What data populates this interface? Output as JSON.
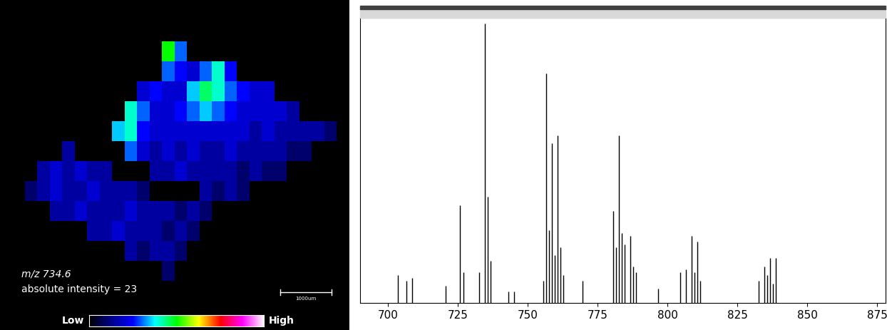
{
  "chart_data": [
    {
      "type": "heatmap",
      "annotations": [
        "m/z 734.6",
        "absolute intensity = 23"
      ],
      "scale_bar": "1000um",
      "colorbar_labels": [
        "Low",
        "High"
      ],
      "color_range": [
        0,
        1
      ],
      "colors": [
        "#000000",
        "#00008b",
        "#0000ff",
        "#00ffff",
        "#00ff00",
        "#ffff00",
        "#ff0000",
        "#ff00ff",
        "#ffffff"
      ],
      "tick_labels": false,
      "cells": [
        [
          0,
          0,
          0,
          0,
          0,
          0,
          0,
          0,
          0,
          0,
          0,
          0,
          0,
          0,
          0,
          0,
          0,
          0,
          0,
          0,
          0,
          0,
          0,
          0,
          0,
          0,
          0,
          0
        ],
        [
          0,
          0,
          0,
          0,
          0,
          0,
          0,
          0,
          0,
          0,
          0,
          0,
          0,
          0.5,
          0.3,
          0,
          0,
          0,
          0,
          0,
          0,
          0,
          0,
          0,
          0,
          0,
          0,
          0
        ],
        [
          0,
          0,
          0,
          0,
          0,
          0,
          0,
          0,
          0,
          0,
          0,
          0,
          0,
          0.3,
          0.25,
          0.2,
          0.3,
          0.4,
          0.25,
          0,
          0,
          0,
          0,
          0,
          0,
          0,
          0,
          0
        ],
        [
          0,
          0,
          0,
          0,
          0,
          0,
          0,
          0,
          0,
          0,
          0,
          0.2,
          0.25,
          0.2,
          0.2,
          0.35,
          0.45,
          0.4,
          0.3,
          0.25,
          0.2,
          0.2,
          0,
          0,
          0,
          0,
          0,
          0
        ],
        [
          0,
          0,
          0,
          0,
          0,
          0,
          0,
          0,
          0,
          0,
          0.4,
          0.3,
          0.2,
          0.2,
          0.25,
          0.3,
          0.35,
          0.3,
          0.25,
          0.2,
          0.2,
          0.2,
          0.2,
          0.15,
          0,
          0,
          0,
          0
        ],
        [
          0,
          0,
          0,
          0,
          0,
          0,
          0,
          0,
          0,
          0.35,
          0.4,
          0.25,
          0.2,
          0.2,
          0.2,
          0.2,
          0.2,
          0.2,
          0.2,
          0.2,
          0.15,
          0.2,
          0.15,
          0.15,
          0.15,
          0.15,
          0.1,
          0
        ],
        [
          0,
          0,
          0,
          0,
          0,
          0.15,
          0,
          0,
          0,
          0,
          0.3,
          0.2,
          0.15,
          0.2,
          0.15,
          0.2,
          0.15,
          0.15,
          0.2,
          0.15,
          0.15,
          0.15,
          0.15,
          0.1,
          0.1,
          0,
          0,
          0
        ],
        [
          0,
          0,
          0,
          0.15,
          0.2,
          0.15,
          0.2,
          0.15,
          0.15,
          0,
          0,
          0,
          0.15,
          0.15,
          0.2,
          0.15,
          0.15,
          0.15,
          0.15,
          0.1,
          0.15,
          0.1,
          0.1,
          0,
          0,
          0,
          0,
          0
        ],
        [
          0,
          0,
          0.1,
          0.15,
          0.2,
          0.15,
          0.15,
          0.2,
          0.15,
          0.15,
          0.15,
          0.1,
          0,
          0,
          0,
          0,
          0.15,
          0.1,
          0.15,
          0.1,
          0,
          0,
          0,
          0,
          0,
          0,
          0,
          0
        ],
        [
          0,
          0,
          0,
          0,
          0.15,
          0.15,
          0.2,
          0.15,
          0.15,
          0.15,
          0.2,
          0.15,
          0.15,
          0.15,
          0.1,
          0.15,
          0.1,
          0,
          0,
          0,
          0,
          0,
          0,
          0,
          0,
          0,
          0,
          0
        ],
        [
          0,
          0,
          0,
          0,
          0,
          0,
          0,
          0.15,
          0.15,
          0.2,
          0.15,
          0.15,
          0.15,
          0.1,
          0.15,
          0.1,
          0,
          0,
          0,
          0,
          0,
          0,
          0,
          0,
          0,
          0,
          0,
          0
        ],
        [
          0,
          0,
          0,
          0,
          0,
          0,
          0,
          0,
          0,
          0,
          0.15,
          0.1,
          0.15,
          0.15,
          0.1,
          0,
          0,
          0,
          0,
          0,
          0,
          0,
          0,
          0,
          0,
          0,
          0,
          0
        ],
        [
          0,
          0,
          0,
          0,
          0,
          0,
          0,
          0,
          0,
          0,
          0,
          0,
          0,
          0.1,
          0,
          0,
          0,
          0,
          0,
          0,
          0,
          0,
          0,
          0,
          0,
          0,
          0,
          0
        ],
        [
          0,
          0,
          0,
          0,
          0,
          0,
          0,
          0,
          0,
          0,
          0,
          0,
          0,
          0,
          0,
          0,
          0,
          0,
          0,
          0,
          0,
          0,
          0,
          0,
          0,
          0,
          0,
          0
        ]
      ]
    },
    {
      "type": "spectrum",
      "color": "#000000",
      "x": [
        703.6,
        706.5,
        708.6,
        720.6,
        725.6,
        727.0,
        732.6,
        734.6,
        735.6,
        736.6,
        743.0,
        745.0,
        755.6,
        756.6,
        757.6,
        758.6,
        759.6,
        760.6,
        761.6,
        762.6,
        769.6,
        780.6,
        781.6,
        782.6,
        783.6,
        784.6,
        786.6,
        787.6,
        788.6,
        796.5,
        804.6,
        806.6,
        808.6,
        809.6,
        810.6,
        811.6,
        832.6,
        834.6,
        835.6,
        836.6,
        837.6,
        838.6
      ],
      "values": [
        10,
        8,
        9,
        6,
        35,
        11,
        11,
        100,
        38,
        15,
        4,
        4,
        8,
        82,
        26,
        57,
        17,
        60,
        20,
        10,
        8,
        33,
        20,
        60,
        25,
        21,
        24,
        13,
        11,
        5,
        11,
        12,
        24,
        11,
        22,
        8,
        8,
        13,
        10,
        16,
        7,
        16
      ],
      "xlim": [
        690,
        878
      ],
      "xticks": [
        700,
        725,
        750,
        775,
        800,
        825,
        850,
        875
      ],
      "ylim": [
        0,
        102
      ],
      "yticks": [],
      "tick_labels": "x"
    }
  ]
}
